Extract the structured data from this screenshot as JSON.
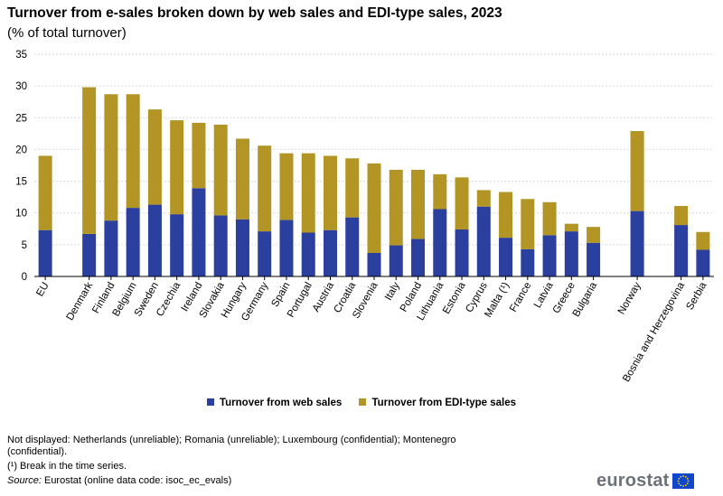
{
  "title": "Turnover from e-sales broken down by web sales and EDI-type sales, 2023",
  "subtitle": "(% of total turnover)",
  "chart_data": {
    "type": "bar",
    "stacked": true,
    "categories": [
      "EU",
      "Denmark",
      "Finland",
      "Belgium",
      "Sweden",
      "Czechia",
      "Ireland",
      "Slovakia",
      "Hungary",
      "Germany",
      "Spain",
      "Portugal",
      "Austria",
      "Croatia",
      "Slovenia",
      "Italy",
      "Poland",
      "Lithuania",
      "Estonia",
      "Cyprus",
      "Malta (¹)",
      "France",
      "Latvia",
      "Greece",
      "Bulgaria",
      "Norway",
      "Bosnia and Herzegovina",
      "Serbia"
    ],
    "groups": [
      1,
      24,
      1,
      2
    ],
    "series": [
      {
        "name": "Turnover from web sales",
        "color": "#2a3f9e",
        "values": [
          7.3,
          6.7,
          8.8,
          10.8,
          11.3,
          9.8,
          13.9,
          9.6,
          9.0,
          7.1,
          8.9,
          6.9,
          7.3,
          9.3,
          3.7,
          4.9,
          5.9,
          10.6,
          7.4,
          11.0,
          6.1,
          4.3,
          6.5,
          7.1,
          5.3,
          10.3,
          8.1,
          4.2
        ]
      },
      {
        "name": "Turnover from EDI-type sales",
        "color": "#b29524",
        "values": [
          11.7,
          23.1,
          19.9,
          17.9,
          15.0,
          14.8,
          10.3,
          14.3,
          12.7,
          13.5,
          10.5,
          12.5,
          11.7,
          9.3,
          14.1,
          11.9,
          10.9,
          5.5,
          8.2,
          2.6,
          7.2,
          7.9,
          5.2,
          1.2,
          2.5,
          12.6,
          3.0,
          2.8
        ]
      }
    ],
    "ylim": [
      0,
      35
    ],
    "yticks": [
      0,
      5,
      10,
      15,
      20,
      25,
      30,
      35
    ],
    "xlabel": "",
    "ylabel": "",
    "grid": true,
    "legend_position": "bottom-center"
  },
  "legend": {
    "web_label": "Turnover from web sales",
    "edi_label": "Turnover from EDI-type sales",
    "web_color": "#2a3f9e",
    "edi_color": "#b29524"
  },
  "notes": {
    "not_displayed": "Not displayed: Netherlands (unreliable); Romania (unreliable); Luxembourg (confidential); Montenegro (confidential).",
    "break": "(¹) Break in the time series.",
    "source_label": "Source:",
    "source_text": " Eurostat (online data code: isoc_ec_evals)"
  },
  "logo": {
    "text": "eurostat"
  }
}
